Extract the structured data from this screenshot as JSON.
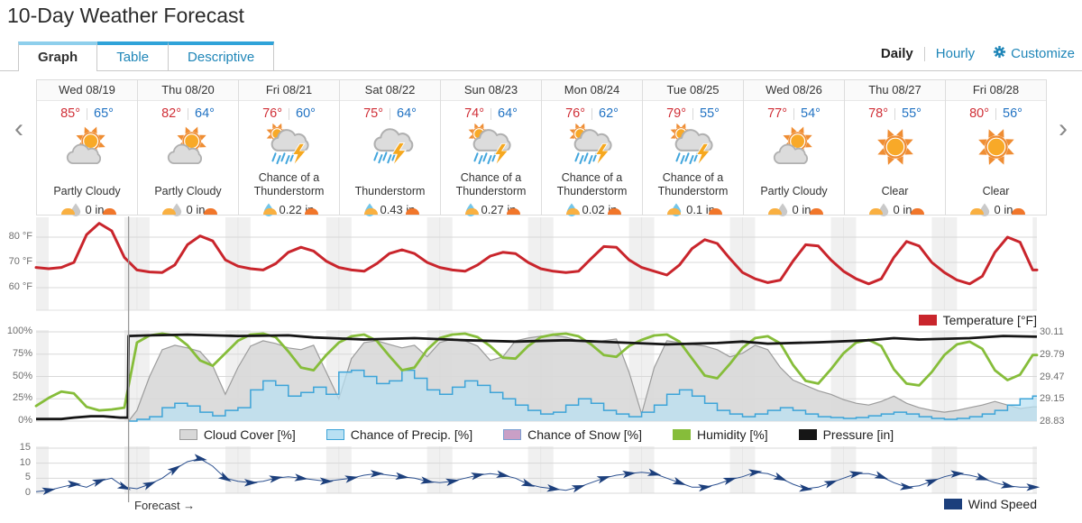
{
  "header": {
    "title": "10-Day Weather Forecast"
  },
  "tabs": [
    {
      "label": "Graph",
      "active": true
    },
    {
      "label": "Table",
      "active": false
    },
    {
      "label": "Descriptive",
      "active": false
    }
  ],
  "view_controls": {
    "daily": "Daily",
    "hourly": "Hourly",
    "customize": "Customize"
  },
  "nav": {
    "prev": "‹",
    "next": "›"
  },
  "cards": [
    {
      "day": "Wed 08/19",
      "high": "85°",
      "low": "65°",
      "condition": "Partly Cloudy",
      "icon": "partly-cloudy",
      "precip": "0 in"
    },
    {
      "day": "Thu 08/20",
      "high": "82°",
      "low": "64°",
      "condition": "Partly Cloudy",
      "icon": "partly-cloudy",
      "precip": "0 in"
    },
    {
      "day": "Fri 08/21",
      "high": "76°",
      "low": "60°",
      "condition": "Chance of a Thunderstorm",
      "icon": "chance-tstorm",
      "precip": "0.22 in"
    },
    {
      "day": "Sat 08/22",
      "high": "75°",
      "low": "64°",
      "condition": "Thunderstorm",
      "icon": "tstorm",
      "precip": "0.43 in"
    },
    {
      "day": "Sun 08/23",
      "high": "74°",
      "low": "64°",
      "condition": "Chance of a Thunderstorm",
      "icon": "chance-tstorm",
      "precip": "0.27 in"
    },
    {
      "day": "Mon 08/24",
      "high": "76°",
      "low": "62°",
      "condition": "Chance of a Thunderstorm",
      "icon": "chance-tstorm",
      "precip": "0.02 in"
    },
    {
      "day": "Tue 08/25",
      "high": "79°",
      "low": "55°",
      "condition": "Chance of a Thunderstorm",
      "icon": "chance-tstorm",
      "precip": "0.1 in"
    },
    {
      "day": "Wed 08/26",
      "high": "77°",
      "low": "54°",
      "condition": "Partly Cloudy",
      "icon": "partly-cloudy",
      "precip": "0 in"
    },
    {
      "day": "Thu 08/27",
      "high": "78°",
      "low": "55°",
      "condition": "Clear",
      "icon": "clear",
      "precip": "0 in"
    },
    {
      "day": "Fri 08/28",
      "high": "80°",
      "low": "56°",
      "condition": "Clear",
      "icon": "clear",
      "precip": "0 in"
    }
  ],
  "forecast_label": "Forecast →",
  "chart_data": [
    {
      "id": "temperature",
      "type": "line",
      "legend": "Temperature [°F]",
      "color": "#c9252c",
      "x_step_hours": 3,
      "ylim": [
        52,
        90
      ],
      "yticks": [
        {
          "label": "80 °F",
          "v": 80
        },
        {
          "label": "70 °F",
          "v": 70
        },
        {
          "label": "60 °F",
          "v": 60
        }
      ],
      "values": [
        68,
        67.5,
        68,
        70,
        81,
        85.5,
        82.5,
        72,
        67,
        66.2,
        66,
        69,
        77,
        80.5,
        78.5,
        71,
        68.5,
        67.5,
        67,
        69.5,
        74,
        76,
        74.5,
        70.5,
        68,
        67,
        66.5,
        69.5,
        73.5,
        75,
        73.5,
        70,
        68,
        67,
        66.5,
        69,
        72.5,
        74,
        73.5,
        70,
        67.5,
        66.5,
        66,
        66.5,
        71.5,
        76.3,
        76,
        71,
        68,
        66.5,
        65,
        69,
        75.5,
        79,
        77.5,
        71.5,
        66,
        63.5,
        62,
        63,
        70.5,
        77,
        76.5,
        71,
        66.5,
        63.5,
        61.5,
        63.5,
        72,
        78.3,
        76.5,
        70,
        66,
        63,
        61.5,
        64.5,
        74,
        80,
        78,
        67
      ]
    },
    {
      "id": "percent-and-pressure",
      "type": "mixed",
      "x_step_hours": 3,
      "left_ticks": [
        {
          "label": "100%",
          "v": 100
        },
        {
          "label": "75%",
          "v": 75
        },
        {
          "label": "50%",
          "v": 50
        },
        {
          "label": "25%",
          "v": 25
        },
        {
          "label": "0%",
          "v": 0
        }
      ],
      "right_ticks": [
        {
          "label": "30.11",
          "v": 100
        },
        {
          "label": "29.79",
          "v": 75
        },
        {
          "label": "29.47",
          "v": 50
        },
        {
          "label": "29.15",
          "v": 25
        },
        {
          "label": "28.83",
          "v": 0
        }
      ],
      "pressure_range": [
        28.83,
        30.11
      ],
      "series": [
        {
          "id": "cloud-cover",
          "legend": "Cloud Cover [%]",
          "style": "area",
          "fill": "#d8d8d8",
          "stroke": "#9c9c9c",
          "values": [
            0,
            0,
            0,
            0,
            0,
            0,
            0,
            0,
            12,
            50,
            80,
            85,
            82,
            78,
            62,
            30,
            60,
            84,
            90,
            87,
            82,
            80,
            85,
            55,
            25,
            70,
            88,
            90,
            86,
            82,
            85,
            72,
            88,
            92,
            90,
            84,
            68,
            72,
            90,
            93,
            95,
            96,
            94,
            90,
            88,
            90,
            92,
            55,
            8,
            60,
            90,
            88,
            86,
            84,
            80,
            72,
            76,
            85,
            80,
            60,
            46,
            40,
            34,
            30,
            24,
            20,
            18,
            22,
            28,
            20,
            15,
            12,
            10,
            12,
            15,
            18,
            22,
            18,
            14,
            16
          ]
        },
        {
          "id": "precip-chance",
          "legend": "Chance of Precip. [%]",
          "style": "step-area",
          "fill": "#b8e0f3",
          "stroke": "#3da4d8",
          "values": [
            0,
            0,
            0,
            0,
            0,
            0,
            0,
            0,
            2,
            5,
            15,
            20,
            17,
            10,
            6,
            12,
            15,
            35,
            45,
            40,
            28,
            32,
            38,
            30,
            55,
            57,
            50,
            42,
            45,
            57,
            48,
            35,
            30,
            38,
            45,
            40,
            32,
            25,
            18,
            12,
            8,
            10,
            18,
            25,
            20,
            12,
            8,
            5,
            10,
            18,
            30,
            35,
            28,
            20,
            12,
            8,
            5,
            8,
            12,
            15,
            12,
            8,
            5,
            4,
            3,
            4,
            6,
            8,
            10,
            8,
            5,
            3,
            2,
            3,
            5,
            8,
            12,
            18,
            25,
            28
          ]
        },
        {
          "id": "snow-chance",
          "legend": "Chance of Snow [%]",
          "style": "step-area",
          "fill": "#c99fc6",
          "stroke": "#7b9fd2",
          "values": []
        },
        {
          "id": "humidity",
          "legend": "Humidity [%]",
          "style": "line",
          "stroke": "#86bd3a",
          "values": [
            17,
            26,
            33,
            31,
            16,
            12,
            13,
            15,
            88,
            96,
            98,
            96,
            85,
            68,
            62,
            76,
            90,
            97,
            98,
            94,
            78,
            60,
            57,
            74,
            88,
            95,
            97,
            90,
            73,
            57,
            60,
            80,
            93,
            97,
            98,
            94,
            84,
            71,
            70,
            84,
            94,
            97,
            98,
            95,
            86,
            74,
            72,
            84,
            91,
            96,
            97,
            89,
            70,
            51,
            48,
            64,
            82,
            93,
            95,
            87,
            63,
            45,
            42,
            58,
            76,
            88,
            91,
            84,
            58,
            42,
            40,
            55,
            74,
            86,
            89,
            81,
            57,
            46,
            52,
            74
          ]
        },
        {
          "id": "pressure",
          "legend": "Pressure [in]",
          "style": "line",
          "stroke": "#161616",
          "points": [
            [
              0,
              28.86
            ],
            [
              6,
              28.86
            ],
            [
              9,
              28.88
            ],
            [
              13,
              28.9
            ],
            [
              16,
              28.9
            ],
            [
              20,
              28.88
            ],
            [
              21.8,
              28.88
            ],
            [
              22,
              30.05
            ],
            [
              27,
              30.06
            ],
            [
              36,
              30.07
            ],
            [
              48,
              30.05
            ],
            [
              60,
              30.06
            ],
            [
              66,
              30.03
            ],
            [
              78,
              30.0
            ],
            [
              90,
              30.02
            ],
            [
              102,
              29.99
            ],
            [
              114,
              29.97
            ],
            [
              126,
              29.99
            ],
            [
              138,
              29.96
            ],
            [
              150,
              29.93
            ],
            [
              162,
              29.95
            ],
            [
              168,
              29.97
            ],
            [
              174,
              29.94
            ],
            [
              186,
              29.96
            ],
            [
              198,
              29.99
            ],
            [
              204,
              30.02
            ],
            [
              210,
              30.0
            ],
            [
              222,
              30.02
            ],
            [
              230,
              30.05
            ],
            [
              238,
              30.04
            ]
          ]
        }
      ]
    },
    {
      "id": "wind",
      "type": "line-arrows",
      "legend": "Wind Speed",
      "color": "#1c3f7c",
      "x_step_hours": 3,
      "yticks": [
        {
          "label": "15",
          "v": 15
        },
        {
          "label": "10",
          "v": 10
        },
        {
          "label": "5",
          "v": 5
        },
        {
          "label": "0",
          "v": 0
        }
      ],
      "values": [
        0.5,
        1,
        2,
        3,
        2,
        4,
        5,
        2,
        1.5,
        3,
        5,
        8,
        10.5,
        11.5,
        9,
        5,
        4,
        3.5,
        4,
        5,
        5.5,
        5,
        4.5,
        4,
        4.5,
        5,
        6,
        6.5,
        6,
        5.5,
        5,
        4,
        3.5,
        4,
        5,
        6,
        6.5,
        6,
        5,
        3,
        2,
        1.5,
        1,
        2,
        3.5,
        5,
        6,
        6.5,
        7,
        6.5,
        5,
        3.5,
        2,
        2,
        3,
        4.5,
        5.5,
        7,
        6.5,
        5,
        3,
        1.5,
        2,
        3.5,
        5,
        6.5,
        6.5,
        5.5,
        3.5,
        2,
        2.5,
        4,
        5.5,
        6.5,
        6,
        5,
        3.5,
        2.5,
        2,
        2
      ]
    }
  ],
  "forecast_marker_hour": 22
}
